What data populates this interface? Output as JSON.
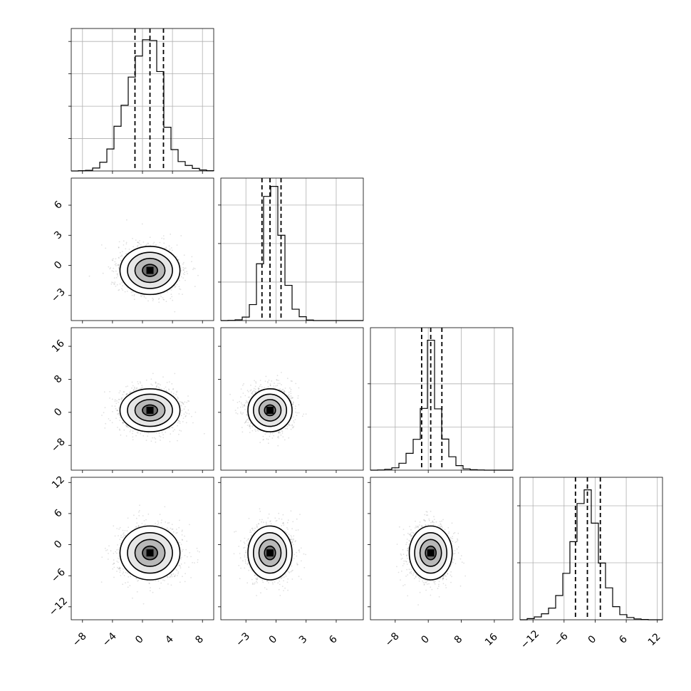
{
  "chart_data": {
    "type": "corner",
    "grid_on_diagonal": true,
    "parameters": [
      {
        "range": [
          -9.5,
          9.5
        ],
        "ticks": [
          -8,
          -4,
          0,
          4,
          8
        ],
        "tick_labels": [
          "−8",
          "−4",
          "0",
          "4",
          "8"
        ],
        "quantiles": [
          -1.0,
          1.0,
          2.8
        ],
        "histogram": {
          "edges": [
            -9.5,
            -8.55,
            -7.6,
            -6.65,
            -5.7,
            -4.75,
            -3.8,
            -2.85,
            -1.9,
            -0.95,
            0.0,
            0.95,
            1.9,
            2.85,
            3.8,
            4.75,
            5.7,
            6.65,
            7.6,
            8.55,
            9.5
          ],
          "counts": [
            0,
            0.1,
            0.2,
            0.9,
            2.7,
            6.8,
            13.8,
            20.3,
            29.0,
            35.5,
            40.5,
            40.3,
            30.7,
            13.5,
            6.6,
            2.9,
            1.7,
            0.8,
            0.3,
            0.1
          ],
          "ymax": 44
        }
      },
      {
        "range": [
          -5.5,
          8.7
        ],
        "ticks": [
          -3,
          0,
          3,
          6
        ],
        "tick_labels": [
          "−3",
          "0",
          "3",
          "6"
        ],
        "quantiles": [
          -1.4,
          -0.6,
          0.5
        ],
        "histogram": {
          "edges": [
            -5.5,
            -4.79,
            -4.08,
            -3.37,
            -2.66,
            -1.95,
            -1.24,
            -0.53,
            0.18,
            0.89,
            1.6,
            2.31,
            3.02,
            3.73,
            4.44,
            5.15,
            5.86,
            6.57,
            7.28,
            7.99,
            8.7
          ],
          "counts": [
            0,
            0.1,
            0.4,
            1.8,
            8.3,
            29.5,
            64.5,
            69.7,
            44.3,
            18.3,
            5.9,
            2.0,
            0.3,
            0,
            0,
            0,
            0,
            0,
            0,
            0
          ],
          "ymax": 74
        }
      },
      {
        "range": [
          -14,
          20.5
        ],
        "ticks": [
          -8,
          0,
          8,
          16
        ],
        "tick_labels": [
          "−8",
          "0",
          "8",
          "16"
        ],
        "quantiles": [
          -1.6,
          0.6,
          3.3
        ],
        "histogram": {
          "edges": [
            -14,
            -12.275,
            -10.55,
            -8.825,
            -7.1,
            -5.375,
            -3.65,
            -1.925,
            -0.2,
            1.525,
            3.25,
            4.975,
            6.7,
            8.425,
            10.15,
            11.875,
            13.6,
            15.325,
            17.05,
            18.775,
            20.5
          ],
          "counts": [
            0,
            0.1,
            0.4,
            1.1,
            3.2,
            7.8,
            14.3,
            28.6,
            60.2,
            28.4,
            14.4,
            6.2,
            2.1,
            0.6,
            0.2,
            0.1,
            0,
            0,
            0,
            0
          ],
          "ymax": 66
        }
      },
      {
        "range": [
          -14.5,
          13
        ],
        "ticks": [
          -12,
          -6,
          0,
          6,
          12
        ],
        "tick_labels": [
          "−12",
          "−6",
          "0",
          "6",
          "12"
        ],
        "quantiles": [
          -3.8,
          -1.5,
          1.0
        ],
        "histogram": {
          "edges": [
            -14.5,
            -13.125,
            -11.75,
            -10.375,
            -9.0,
            -7.625,
            -6.25,
            -4.875,
            -3.5,
            -2.125,
            -0.75,
            0.625,
            2.0,
            3.375,
            4.75,
            6.125,
            7.5,
            8.875,
            10.25,
            11.625,
            13.0
          ],
          "counts": [
            0,
            0.4,
            1.0,
            2.1,
            4.1,
            8.5,
            16.3,
            27.4,
            40.8,
            45.6,
            33.9,
            19.9,
            11.2,
            4.6,
            1.8,
            0.8,
            0.3,
            0.1,
            0,
            0
          ],
          "ymax": 50
        }
      }
    ],
    "diagonal_hist_ticks": [
      [
        10,
        20,
        30,
        40
      ],
      [
        20,
        40,
        60
      ],
      [
        20,
        40
      ],
      [
        20,
        40
      ]
    ],
    "pairs": [
      {
        "row": 1,
        "col": 0,
        "mean": [
          1.0,
          -0.5
        ],
        "sigma": [
          2.0,
          1.2
        ],
        "contour_radii": [
          0.5,
          1.0,
          1.5,
          2.0
        ]
      },
      {
        "row": 2,
        "col": 0,
        "mean": [
          1.0,
          0.5
        ],
        "sigma": [
          2.0,
          2.6
        ],
        "contour_radii": [
          0.5,
          1.0,
          1.5,
          2.0
        ]
      },
      {
        "row": 2,
        "col": 1,
        "mean": [
          -0.6,
          0.5
        ],
        "sigma": [
          1.1,
          2.6
        ],
        "contour_radii": [
          0.5,
          1.0,
          1.5,
          2.0
        ]
      },
      {
        "row": 3,
        "col": 0,
        "mean": [
          1.0,
          -1.6
        ],
        "sigma": [
          2.0,
          2.6
        ],
        "contour_radii": [
          0.5,
          1.0,
          1.5,
          2.0
        ]
      },
      {
        "row": 3,
        "col": 1,
        "mean": [
          -0.6,
          -1.6
        ],
        "sigma": [
          1.1,
          2.6
        ],
        "contour_radii": [
          0.5,
          1.0,
          1.5,
          2.0
        ]
      },
      {
        "row": 3,
        "col": 2,
        "mean": [
          0.6,
          -1.6
        ],
        "sigma": [
          2.6,
          2.6
        ],
        "contour_radii": [
          0.5,
          1.0,
          1.5,
          2.0
        ]
      }
    ]
  }
}
